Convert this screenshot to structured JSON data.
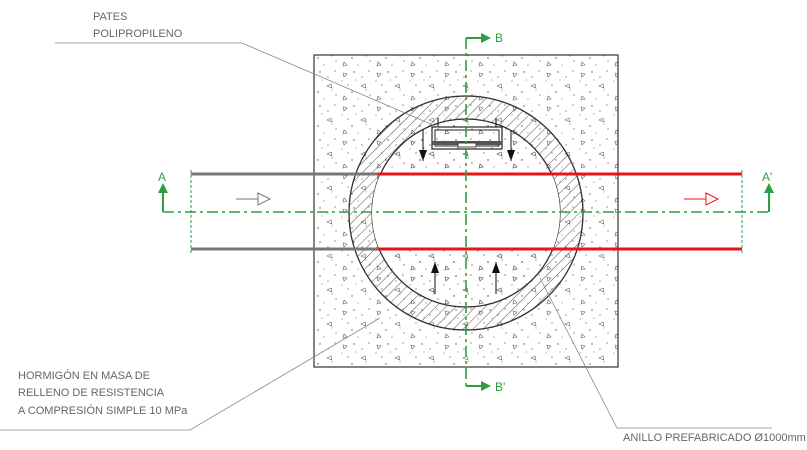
{
  "labels": {
    "pates_line1": "PATES",
    "pates_line2": "POLIPROPILENO",
    "hormigon_line1": "HORMIGÓN EN MASA DE",
    "hormigon_line2": "RELLENO DE RESISTENCIA",
    "hormigon_line3": "A COMPRESIÓN SIMPLE 10 MPa",
    "anillo": "ANILLO PREFABRICADO Ø1000mm"
  },
  "section_marks": {
    "a": "A",
    "a_prime": "A'",
    "b": "B",
    "b_prime": "B'"
  },
  "colors": {
    "section_line": "#2e9e3e",
    "outlet_pipe": "#e8141c",
    "inlet_pipe": "#777777",
    "concrete_outline": "#333333",
    "leader_line": "#888888"
  }
}
